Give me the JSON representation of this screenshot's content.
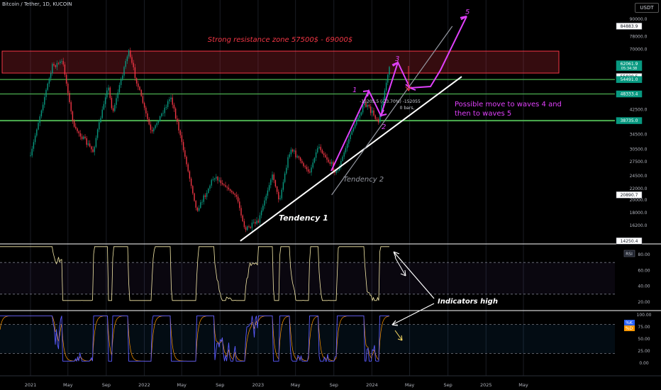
{
  "header": {
    "title": "Bitcoin / Tether, 1D, KUCOIN",
    "currency": "USDT"
  },
  "chart_data": {
    "type": "candlestick",
    "x_ticks": [
      {
        "label": "2021",
        "date": "2021-01-01"
      },
      {
        "label": "May",
        "date": "2021-05-01"
      },
      {
        "label": "Sep",
        "date": "2021-09-01"
      },
      {
        "label": "2022",
        "date": "2022-01-01"
      },
      {
        "label": "May",
        "date": "2022-05-01"
      },
      {
        "label": "Sep",
        "date": "2022-09-01"
      },
      {
        "label": "2023",
        "date": "2023-01-01"
      },
      {
        "label": "May",
        "date": "2023-05-01"
      },
      {
        "label": "Sep",
        "date": "2023-09-01"
      },
      {
        "label": "2024",
        "date": "2024-01-01"
      },
      {
        "label": "May",
        "date": "2024-05-01"
      },
      {
        "label": "Sep",
        "date": "2024-09-01"
      },
      {
        "label": "2025",
        "date": "2025-01-01"
      },
      {
        "label": "May",
        "date": "2025-05-01"
      }
    ],
    "price_axis": {
      "scale": "log",
      "ticks": [
        {
          "label": "90000.0",
          "value": 90000
        },
        {
          "label": "78000.0",
          "value": 78000
        },
        {
          "label": "70000.0",
          "value": 70000
        },
        {
          "label": "42500.0",
          "value": 42500
        },
        {
          "label": "34500.0",
          "value": 34500
        },
        {
          "label": "30500.0",
          "value": 30500
        },
        {
          "label": "27500.0",
          "value": 27500
        },
        {
          "label": "24500.0",
          "value": 24500
        },
        {
          "label": "22000.0",
          "value": 22000
        },
        {
          "label": "20000.0",
          "value": 20000
        },
        {
          "label": "18000.0",
          "value": 18000
        },
        {
          "label": "16200.0",
          "value": 16200
        }
      ],
      "markers": [
        {
          "label": "84883.9",
          "value": 84883.9,
          "style": "box"
        },
        {
          "label": "62061.9",
          "sub": "05:34:38",
          "value": 62061.9,
          "style": "green"
        },
        {
          "label": "55829.5",
          "value": 55829.5,
          "style": "box"
        },
        {
          "label": "54491.0",
          "value": 54491,
          "style": "green"
        },
        {
          "label": "48333.4",
          "value": 48333.4,
          "style": "green"
        },
        {
          "label": "38735.0",
          "value": 38735,
          "style": "green"
        },
        {
          "label": "20890.7",
          "value": 20890.7,
          "style": "box"
        },
        {
          "label": "14250.4",
          "value": 14250.4,
          "style": "box"
        }
      ]
    },
    "price_series": [
      {
        "date": "2021-01-01",
        "close": 29000
      },
      {
        "date": "2021-02-10",
        "close": 45000
      },
      {
        "date": "2021-03-13",
        "close": 61000
      },
      {
        "date": "2021-04-14",
        "close": 63500
      },
      {
        "date": "2021-05-19",
        "close": 37000
      },
      {
        "date": "2021-07-20",
        "close": 30000
      },
      {
        "date": "2021-09-07",
        "close": 52000
      },
      {
        "date": "2021-09-21",
        "close": 41000
      },
      {
        "date": "2021-11-10",
        "close": 68900
      },
      {
        "date": "2022-01-24",
        "close": 35000
      },
      {
        "date": "2022-03-28",
        "close": 47500
      },
      {
        "date": "2022-05-12",
        "close": 28500
      },
      {
        "date": "2022-06-18",
        "close": 18200
      },
      {
        "date": "2022-08-14",
        "close": 24500
      },
      {
        "date": "2022-10-25",
        "close": 20500
      },
      {
        "date": "2022-11-21",
        "close": 15600
      },
      {
        "date": "2023-01-01",
        "close": 16600
      },
      {
        "date": "2023-02-16",
        "close": 24800
      },
      {
        "date": "2023-03-10",
        "close": 19800
      },
      {
        "date": "2023-04-14",
        "close": 30900
      },
      {
        "date": "2023-06-15",
        "close": 25000
      },
      {
        "date": "2023-07-13",
        "close": 31500
      },
      {
        "date": "2023-09-11",
        "close": 25000
      },
      {
        "date": "2023-10-24",
        "close": 34500
      },
      {
        "date": "2023-12-08",
        "close": 44500
      },
      {
        "date": "2024-01-23",
        "close": 38800
      },
      {
        "date": "2024-02-28",
        "close": 62061.9
      }
    ],
    "zones": [
      {
        "label": "Strong resistance zone 57500$ - 69000$",
        "from": 57500,
        "to": 69000,
        "color": "#f23645"
      }
    ],
    "horizontal_levels": [
      {
        "value": 54491,
        "color": "#4caf50"
      },
      {
        "value": 48333.4,
        "color": "#4caf50"
      },
      {
        "value": 38735,
        "color": "#4caf50"
      }
    ],
    "trendlines": [
      {
        "label": "Tendency 1",
        "from": {
          "date": "2022-11-05",
          "price": 14250.4
        },
        "to": {
          "date": "2024-10-15",
          "price": 55829.5
        },
        "color": "#ffffff"
      },
      {
        "label": "Tendency 2",
        "from": {
          "date": "2023-08-25",
          "price": 20890.7
        },
        "to": {
          "date": "2024-09-15",
          "price": 84883.9
        },
        "color": "#9598a1"
      }
    ],
    "wave_labels": [
      {
        "label": "1",
        "date": "2023-12-05",
        "price": 47500
      },
      {
        "label": "2",
        "date": "2024-01-25",
        "price": 36500
      },
      {
        "label": "3",
        "date": "2024-03-08",
        "price": 68000
      },
      {
        "label": "5",
        "date": "2024-08-10",
        "price": 102000
      }
    ],
    "annotations": [
      {
        "label": "Possible move to waves 4 and then to waves 5",
        "lines": [
          "Possible move to waves 4 and",
          "then to waves 5"
        ],
        "color": "#e040fb"
      },
      {
        "label": "Indicators high",
        "color": "#ffffff"
      }
    ],
    "measurement": {
      "line1": "-15205.5 (-23.70%) -152055",
      "line2": "0 bars,"
    },
    "rsi": {
      "label": "RSI",
      "ticks": [
        {
          "label": "80.00",
          "value": 80
        },
        {
          "label": "60.00",
          "value": 60
        },
        {
          "label": "40.00",
          "value": 40
        },
        {
          "label": "20.00",
          "value": 20
        }
      ],
      "band": [
        30,
        70
      ]
    },
    "stoch": {
      "labels": [
        "%K",
        "%D"
      ],
      "ticks": [
        {
          "label": "100.00",
          "value": 100
        },
        {
          "label": "75.00",
          "value": 75
        },
        {
          "label": "50.00",
          "value": 50
        },
        {
          "label": "25.00",
          "value": 25
        },
        {
          "label": "0.00",
          "value": 0
        }
      ],
      "band": [
        20,
        80
      ]
    }
  }
}
